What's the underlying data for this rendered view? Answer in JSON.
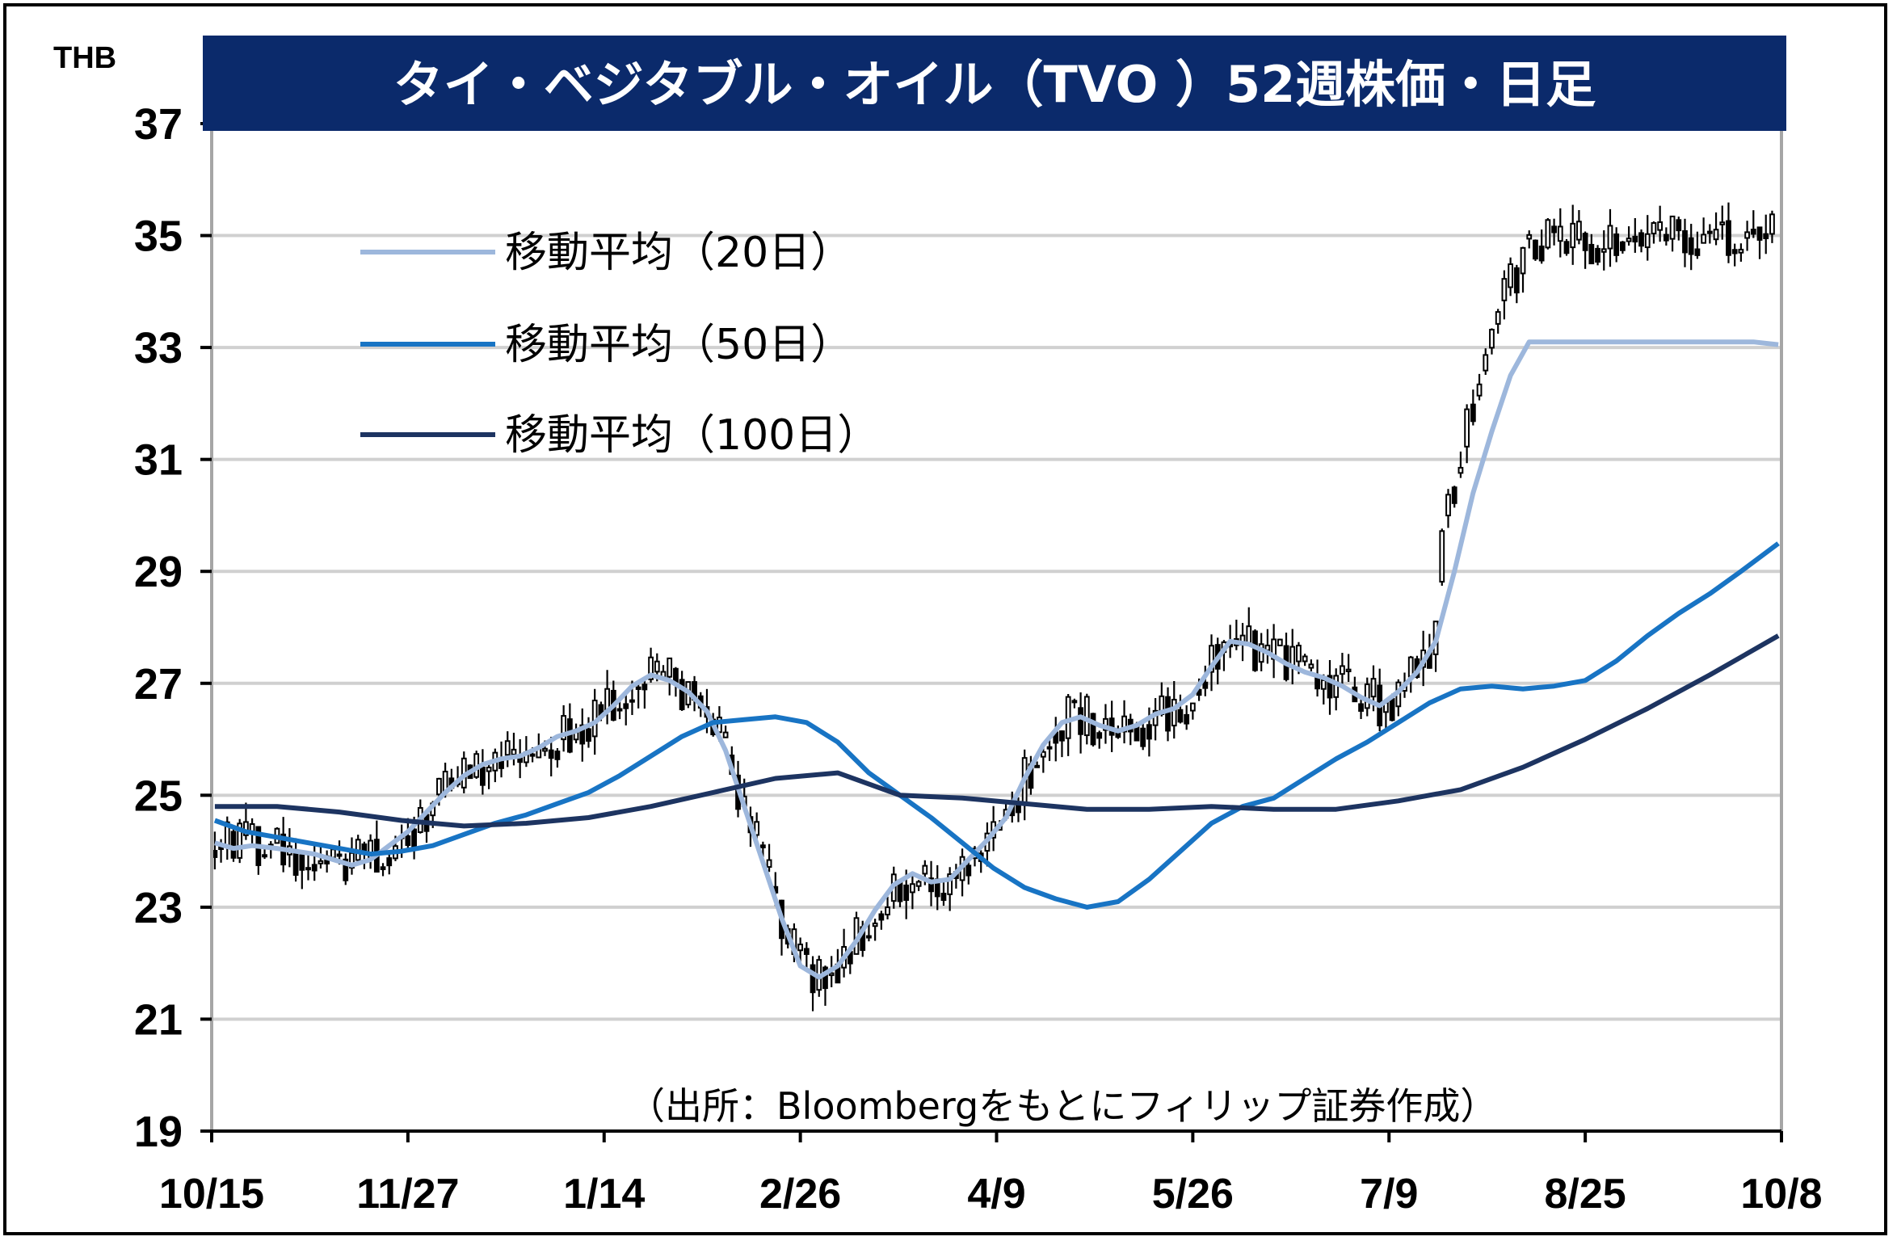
{
  "chart_data": {
    "type": "candlestick",
    "title": "タイ・ベジタブル・オイル（TVO ）52週株価・日足",
    "unit": "THB",
    "ylim": [
      19,
      37
    ],
    "yticks": [
      19,
      21,
      23,
      25,
      27,
      29,
      31,
      33,
      35,
      37
    ],
    "xticks": [
      "10/15",
      "11/27",
      "1/14",
      "2/26",
      "4/9",
      "5/26",
      "7/9",
      "8/25",
      "10/8"
    ],
    "grid": true,
    "legend_position": "top-left",
    "source": "（出所：Bloombergをもとにフィリップ証券作成）",
    "series": [
      {
        "name": "移動平均（20日）",
        "color": "#9db7dc",
        "x": [
          0,
          3,
          6,
          10,
          13,
          16,
          19,
          22,
          25,
          28,
          31,
          34,
          37,
          40,
          43,
          46,
          49,
          52,
          55,
          58,
          61,
          64,
          67,
          70,
          73,
          76,
          79,
          82,
          85,
          88,
          91,
          94,
          97,
          100,
          103,
          106,
          109,
          112,
          115,
          118,
          121,
          124,
          127,
          130,
          133,
          136,
          139,
          142,
          145,
          148,
          151,
          154,
          157,
          160,
          163,
          166,
          169,
          172,
          175,
          178,
          181,
          184,
          187,
          190,
          193,
          196,
          199,
          202,
          205,
          208,
          211,
          214,
          217,
          220,
          223,
          226,
          229,
          232,
          235,
          238,
          241,
          244,
          247,
          251
        ],
        "values": [
          24.15,
          24.05,
          24.1,
          24.05,
          24.0,
          23.95,
          23.85,
          23.75,
          23.85,
          24.1,
          24.35,
          24.7,
          25.05,
          25.35,
          25.55,
          25.65,
          25.7,
          25.85,
          26.05,
          26.15,
          26.3,
          26.6,
          26.95,
          27.15,
          27.05,
          26.85,
          26.5,
          25.8,
          24.8,
          23.8,
          22.8,
          21.95,
          21.75,
          21.95,
          22.4,
          22.95,
          23.4,
          23.6,
          23.45,
          23.5,
          23.85,
          24.2,
          24.6,
          25.3,
          25.9,
          26.3,
          26.4,
          26.25,
          26.15,
          26.25,
          26.45,
          26.55,
          26.8,
          27.3,
          27.75,
          27.7,
          27.55,
          27.35,
          27.2,
          27.1,
          26.95,
          26.75,
          26.6,
          26.85,
          27.2,
          27.75,
          29.0,
          30.4,
          31.5,
          32.5,
          33.1,
          33.1,
          33.1,
          33.1,
          33.1,
          33.1,
          33.1,
          33.1,
          33.1,
          33.1,
          33.1,
          33.1,
          33.1,
          33.05
        ]
      },
      {
        "name": "移動平均（50日）",
        "color": "#1874c4",
        "x": [
          0,
          5,
          10,
          15,
          20,
          25,
          30,
          35,
          40,
          45,
          50,
          55,
          60,
          65,
          70,
          75,
          80,
          85,
          90,
          95,
          100,
          105,
          110,
          115,
          120,
          125,
          130,
          135,
          140,
          145,
          150,
          155,
          160,
          165,
          170,
          175,
          180,
          185,
          190,
          195,
          200,
          205,
          210,
          215,
          220,
          225,
          230,
          235,
          240,
          245,
          251
        ],
        "values": [
          24.55,
          24.35,
          24.25,
          24.15,
          24.05,
          23.95,
          24.0,
          24.1,
          24.3,
          24.5,
          24.65,
          24.85,
          25.05,
          25.35,
          25.7,
          26.05,
          26.3,
          26.35,
          26.4,
          26.3,
          25.95,
          25.4,
          25.0,
          24.6,
          24.15,
          23.7,
          23.35,
          23.15,
          23.0,
          23.1,
          23.5,
          24.0,
          24.5,
          24.8,
          24.95,
          25.3,
          25.65,
          25.95,
          26.3,
          26.65,
          26.9,
          26.95,
          26.9,
          26.95,
          27.05,
          27.4,
          27.85,
          28.25,
          28.6,
          29.0,
          29.5
        ]
      },
      {
        "name": "移動平均（100日）",
        "color": "#1d3461",
        "x": [
          0,
          10,
          20,
          30,
          40,
          50,
          60,
          70,
          80,
          90,
          100,
          110,
          120,
          130,
          140,
          150,
          160,
          170,
          180,
          190,
          200,
          210,
          220,
          230,
          240,
          251
        ],
        "values": [
          24.8,
          24.8,
          24.7,
          24.55,
          24.45,
          24.5,
          24.6,
          24.8,
          25.05,
          25.3,
          25.4,
          25.0,
          24.95,
          24.85,
          24.75,
          24.75,
          24.8,
          24.75,
          24.75,
          24.9,
          25.1,
          25.5,
          26.0,
          26.55,
          27.15,
          27.85
        ]
      }
    ]
  }
}
